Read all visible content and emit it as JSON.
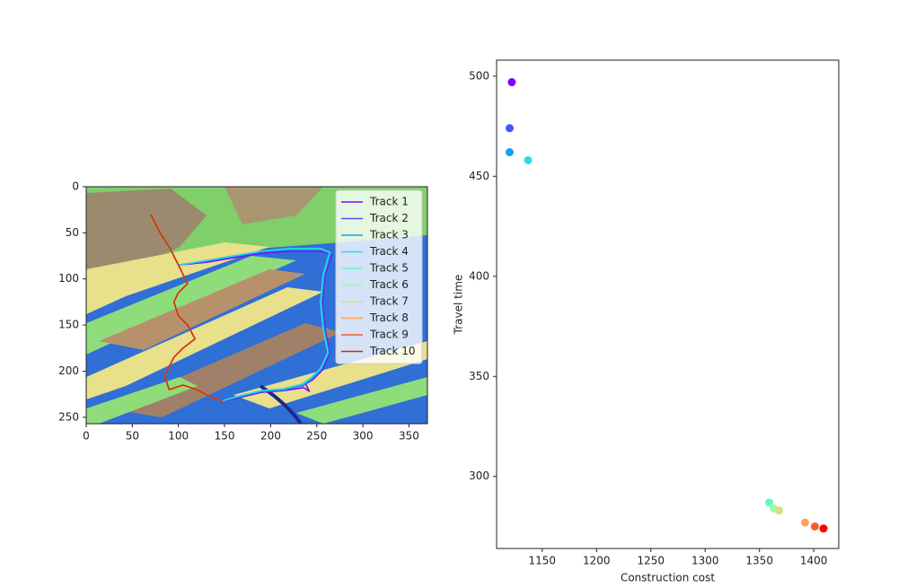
{
  "chart_data": [
    {
      "type": "line",
      "xlim": [
        0,
        370
      ],
      "ylim": [
        257,
        0
      ],
      "xticks": [
        0,
        50,
        100,
        150,
        200,
        250,
        300,
        350
      ],
      "yticks": [
        0,
        50,
        100,
        150,
        200,
        250
      ],
      "legend": "upper right",
      "series": [
        {
          "name": "Track 1",
          "color": "#8000ff",
          "x": [
            70,
            80,
            90,
            100,
            130,
            160,
            190,
            220,
            255,
            266,
            259,
            256,
            259,
            264,
            256,
            246,
            238,
            242,
            236,
            215,
            190,
            165,
            148
          ],
          "y": [
            30,
            50,
            65,
            85,
            82,
            77,
            72,
            70,
            70,
            74,
            95,
            125,
            155,
            180,
            199,
            209,
            214,
            222,
            218,
            221,
            223,
            229,
            232
          ]
        },
        {
          "name": "Track 2",
          "color": "#4757fb",
          "x": [
            70,
            80,
            90,
            100,
            130,
            160,
            190,
            220,
            255,
            265,
            258,
            255,
            258,
            263,
            255,
            245,
            235,
            215,
            190,
            165,
            148
          ],
          "y": [
            30,
            50,
            65,
            85,
            81,
            76,
            71,
            69,
            69,
            73,
            95,
            125,
            155,
            180,
            198,
            208,
            216,
            220,
            222,
            228,
            232
          ]
        },
        {
          "name": "Track 3",
          "color": "#0ea4f0",
          "x": [
            70,
            80,
            90,
            100,
            130,
            160,
            190,
            220,
            255,
            265,
            258,
            255,
            258,
            263,
            255,
            245,
            235,
            215,
            190,
            165,
            148
          ],
          "y": [
            30,
            50,
            65,
            85,
            80,
            75,
            70,
            68,
            68,
            72,
            95,
            125,
            155,
            180,
            198,
            208,
            215,
            220,
            222,
            228,
            232
          ]
        },
        {
          "name": "Track 4",
          "color": "#2adddd",
          "x": [
            70,
            80,
            90,
            100,
            130,
            160,
            190,
            220,
            254,
            264,
            257,
            254,
            257,
            262,
            254,
            244,
            234,
            214,
            190,
            165,
            148
          ],
          "y": [
            30,
            50,
            65,
            85,
            80,
            75,
            70,
            67,
            67,
            71,
            95,
            125,
            155,
            180,
            197,
            207,
            214,
            219,
            221,
            227,
            232
          ]
        },
        {
          "name": "Track 5",
          "color": "#63fbc3",
          "x": [
            70,
            80,
            90,
            100,
            105,
            110,
            100,
            95,
            100,
            110,
            118,
            105,
            95,
            85,
            90,
            105,
            120,
            135,
            148
          ],
          "y": [
            30,
            50,
            65,
            85,
            95,
            105,
            115,
            125,
            140,
            150,
            165,
            175,
            185,
            205,
            220,
            215,
            220,
            228,
            232
          ]
        },
        {
          "name": "Track 6",
          "color": "#9cfba4",
          "x": [
            70,
            80,
            90,
            100,
            105,
            110,
            100,
            95,
            100,
            110,
            118,
            105,
            95,
            85,
            90,
            105,
            120,
            135,
            148
          ],
          "y": [
            30,
            50,
            65,
            85,
            95,
            105,
            115,
            125,
            140,
            150,
            165,
            175,
            185,
            205,
            220,
            215,
            220,
            228,
            232
          ]
        },
        {
          "name": "Track 7",
          "color": "#d4dd80",
          "x": [
            70,
            80,
            90,
            100,
            105,
            110,
            100,
            95,
            100,
            110,
            118,
            105,
            95,
            85,
            90,
            105,
            120,
            135,
            148
          ],
          "y": [
            30,
            50,
            65,
            85,
            95,
            105,
            115,
            125,
            140,
            150,
            165,
            175,
            185,
            205,
            220,
            215,
            220,
            228,
            232
          ]
        },
        {
          "name": "Track 8",
          "color": "#ffa457",
          "x": [
            70,
            80,
            90,
            100,
            105,
            110,
            100,
            95,
            100,
            110,
            118,
            105,
            95,
            85,
            90,
            105,
            120,
            135,
            148
          ],
          "y": [
            30,
            50,
            65,
            85,
            95,
            105,
            115,
            125,
            140,
            150,
            165,
            175,
            185,
            205,
            220,
            215,
            220,
            228,
            232
          ]
        },
        {
          "name": "Track 9",
          "color": "#ff572c",
          "x": [
            70,
            80,
            90,
            100,
            105,
            110,
            100,
            95,
            100,
            110,
            118,
            105,
            95,
            85,
            90,
            105,
            120,
            135,
            148
          ],
          "y": [
            30,
            50,
            65,
            85,
            95,
            105,
            115,
            125,
            140,
            150,
            165,
            175,
            185,
            205,
            220,
            215,
            220,
            228,
            232
          ]
        },
        {
          "name": "Track 10",
          "color": "#d42a00",
          "x": [
            70,
            80,
            90,
            100,
            105,
            110,
            100,
            95,
            100,
            110,
            118,
            105,
            95,
            85,
            90,
            105,
            120,
            135,
            148
          ],
          "y": [
            30,
            50,
            65,
            85,
            95,
            105,
            115,
            125,
            140,
            150,
            165,
            175,
            185,
            205,
            220,
            215,
            220,
            228,
            232
          ]
        }
      ]
    },
    {
      "type": "scatter",
      "xlabel": "Construction cost",
      "ylabel": "Travel time",
      "xlim": [
        1108,
        1423
      ],
      "ylim": [
        264,
        508
      ],
      "xticks": [
        1150,
        1200,
        1250,
        1300,
        1350,
        1400
      ],
      "yticks": [
        300,
        350,
        400,
        450,
        500
      ],
      "x": [
        1122,
        1120,
        1120,
        1137,
        1359,
        1363,
        1368,
        1392,
        1401,
        1409
      ],
      "y": [
        497,
        474,
        462,
        458,
        287,
        284,
        283,
        277,
        275,
        274
      ],
      "colors": [
        "#8000ff",
        "#4757fb",
        "#0ea4f0",
        "#2adddd",
        "#63fbc3",
        "#9cfba4",
        "#d4dd80",
        "#ffa457",
        "#ff572c",
        "#ff0000"
      ]
    }
  ]
}
